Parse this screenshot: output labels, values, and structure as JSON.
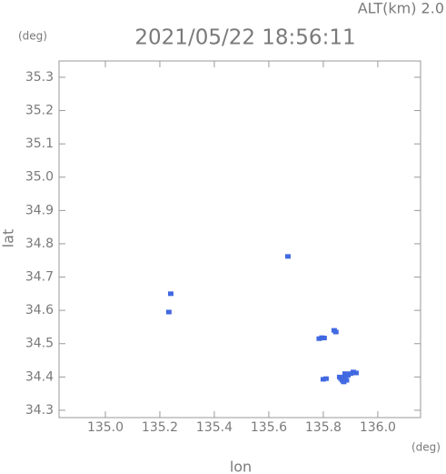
{
  "chart_data": {
    "type": "scatter",
    "title": "2021/05/22 18:56:11",
    "subtitle": "ALT(km) 2.0",
    "y_unit": "(deg)",
    "x_unit": "(deg)",
    "x_label": "lon",
    "y_label": "lat",
    "xlim": [
      134.83,
      136.157
    ],
    "ylim": [
      34.278,
      35.349
    ],
    "xticks": [
      {
        "value": 135.0,
        "label": "135.0"
      },
      {
        "value": 135.2,
        "label": "135.2"
      },
      {
        "value": 135.4,
        "label": "135.4"
      },
      {
        "value": 135.6,
        "label": "135.6"
      },
      {
        "value": 135.8,
        "label": "135.8"
      },
      {
        "value": 136.0,
        "label": "136.0"
      }
    ],
    "yticks": [
      {
        "value": 34.3,
        "label": "34.3"
      },
      {
        "value": 34.4,
        "label": "34.4"
      },
      {
        "value": 34.5,
        "label": "34.5"
      },
      {
        "value": 34.6,
        "label": "34.6"
      },
      {
        "value": 34.7,
        "label": "34.7"
      },
      {
        "value": 34.8,
        "label": "34.8"
      },
      {
        "value": 34.9,
        "label": "34.9"
      },
      {
        "value": 35.0,
        "label": "35.0"
      },
      {
        "value": 35.1,
        "label": "35.1"
      },
      {
        "value": 35.2,
        "label": "35.2"
      },
      {
        "value": 35.3,
        "label": "35.3"
      }
    ],
    "series": [
      {
        "color": "#4169e1",
        "x": [
          135.24,
          135.67,
          135.233,
          135.785,
          135.795,
          135.803,
          135.84,
          135.846,
          135.8,
          135.81,
          135.86,
          135.865,
          135.87,
          135.875,
          135.88,
          135.88,
          135.885,
          135.89,
          135.9,
          135.91,
          135.92
        ],
        "values": [
          34.65,
          34.762,
          34.595,
          34.515,
          34.518,
          34.517,
          34.54,
          34.535,
          34.393,
          34.395,
          34.4,
          34.395,
          34.39,
          34.385,
          34.4,
          34.41,
          34.39,
          34.405,
          34.41,
          34.415,
          34.412
        ]
      }
    ]
  }
}
